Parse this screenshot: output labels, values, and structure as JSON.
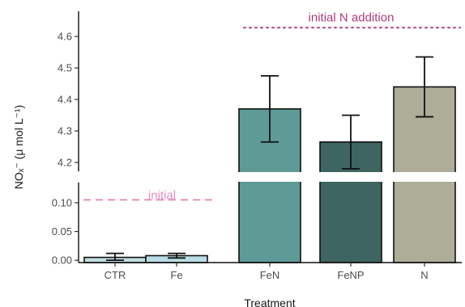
{
  "chart_data": {
    "type": "bar",
    "xlabel": "Treatment",
    "ylabel": "NOₓ⁻ (μ mol L⁻¹)",
    "categories": [
      "CTR",
      "Fe",
      "FeN",
      "FeNP",
      "N"
    ],
    "series": [
      {
        "values": [
          0.005,
          0.008,
          4.37,
          4.265,
          4.44
        ],
        "error_low": [
          0.0,
          0.004,
          4.265,
          4.18,
          4.345
        ],
        "error_high": [
          0.012,
          0.012,
          4.475,
          4.35,
          4.535
        ],
        "colors": [
          "#c3dde0",
          "#b8dde4",
          "#5e9a96",
          "#3e6562",
          "#adad98"
        ]
      }
    ],
    "y_axis_breaks": {
      "lower": {
        "ylim": [
          -0.004,
          0.135
        ],
        "ticks": [
          "0.00",
          "0.05",
          "0.10"
        ]
      },
      "upper": {
        "ylim": [
          4.172,
          4.68
        ],
        "ticks": [
          "4.2",
          "4.3",
          "4.4",
          "4.5",
          "4.6"
        ]
      }
    },
    "reference_lines": [
      {
        "label": "initial",
        "value": 0.105,
        "style": "dashed",
        "color": "#e58ec0",
        "span": [
          "CTR",
          "Fe"
        ]
      },
      {
        "label": "initial N addition",
        "value": 4.628,
        "style": "dotted",
        "color": "#b03a7a",
        "span": [
          "FeN",
          "N"
        ]
      }
    ],
    "grid": false,
    "legend": "none"
  }
}
